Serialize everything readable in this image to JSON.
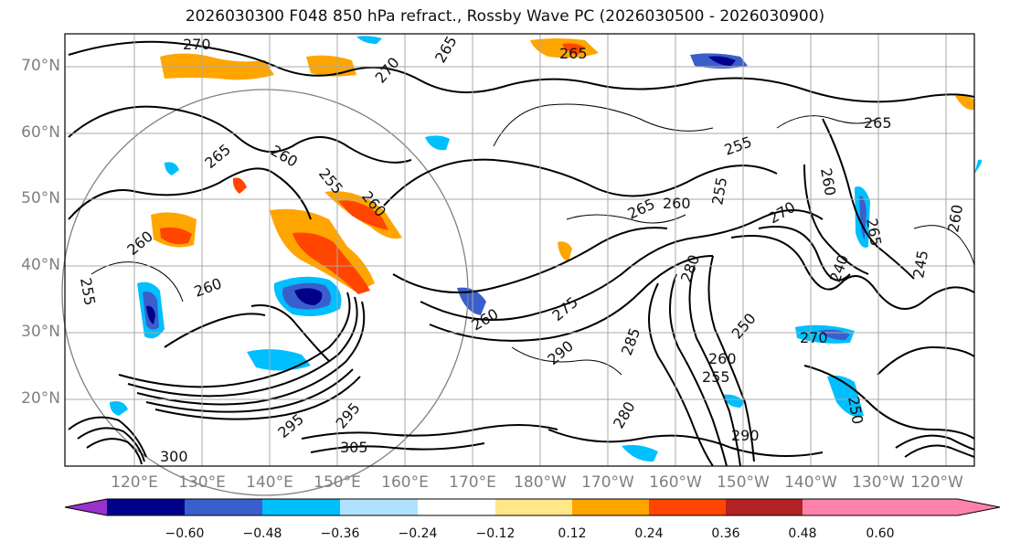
{
  "title": "2026030300 F048 850 hPa refract., Rossby Wave PC (2026030500 - 2026030900)",
  "map": {
    "lat_labels": [
      "70°N",
      "60°N",
      "50°N",
      "40°N",
      "30°N",
      "20°N"
    ],
    "lon_labels": [
      "120°E",
      "130°E",
      "140°E",
      "150°E",
      "160°E",
      "170°E",
      "180°W",
      "170°W",
      "160°W",
      "150°W",
      "140°W",
      "130°W",
      "120°W"
    ],
    "contour_labels": [
      "270",
      "265",
      "270",
      "265",
      "265",
      "260",
      "255",
      "260",
      "265",
      "260",
      "255",
      "260",
      "255",
      "260",
      "265",
      "255",
      "260",
      "270",
      "280",
      "275",
      "260",
      "290",
      "285",
      "250",
      "260",
      "255",
      "270",
      "240",
      "295",
      "305",
      "295",
      "300",
      "290",
      "280",
      "250",
      "245",
      "265",
      "260"
    ],
    "grid_color": "#a9a9a9",
    "contour_color": "#000000"
  },
  "colorbar": {
    "ticks": [
      "−0.60",
      "−0.48",
      "−0.36",
      "−0.24",
      "−0.12",
      "0.12",
      "0.24",
      "0.36",
      "0.48",
      "0.60"
    ],
    "colors": [
      "#9932cc",
      "#00008b",
      "#3a5fcd",
      "#00bfff",
      "#b0e2ff",
      "#ffffff",
      "#ffe78a",
      "#ffa500",
      "#ff4500",
      "#b22222",
      "#ff82ab"
    ]
  }
}
